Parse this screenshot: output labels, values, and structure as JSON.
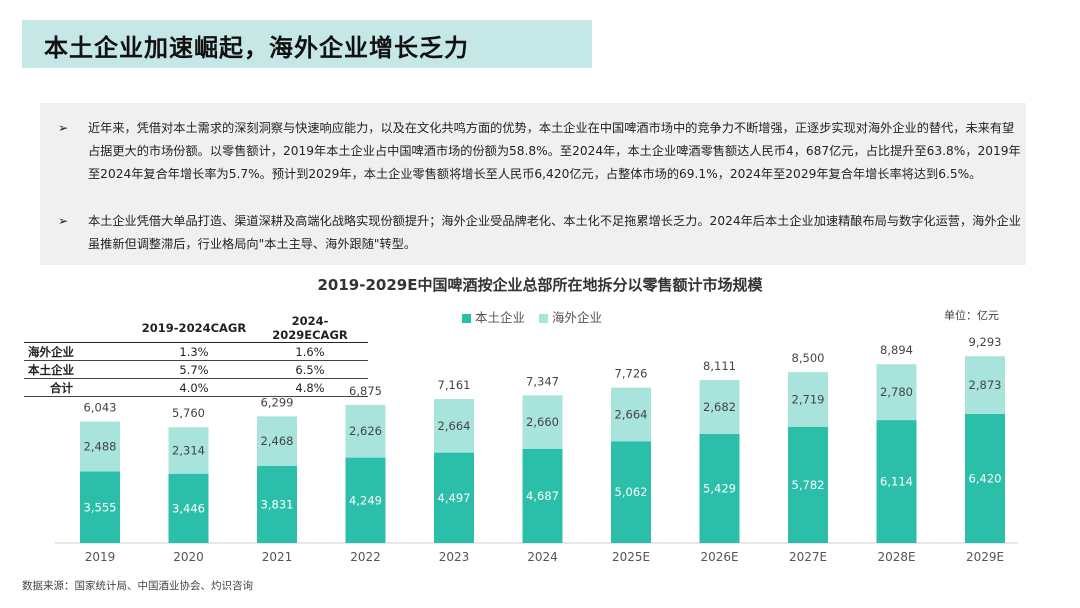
{
  "header": {
    "title": "本土企业加速崛起，海外企业增长乏力"
  },
  "summary": {
    "bullets": [
      "近年来，凭借对本土需求的深刻洞察与快速响应能力，以及在文化共鸣方面的优势，本土企业在中国啤酒市场中的竞争力不断增强，正逐步实现对海外企业的替代，未来有望占据更大的市场份额。以零售额计，2019年本土企业占中国啤酒市场的份额为58.8%。至2024年，本土企业啤酒零售额达人民币4，687亿元，占比提升至63.8%，2019年至2024年复合年增长率为5.7%。预计到2029年，本土企业零售额将增长至人民币6,420亿元，占整体市场的69.1%，2024年至2029年复合年增长率将达到6.5%。",
      "本土企业凭借大单品打造、渠道深耕及高端化战略实现份额提升；海外企业受品牌老化、本土化不足拖累增长乏力。2024年后本土企业加速精酿布局与数字化运营，海外企业虽推新但调整滞后，行业格局向\"本土主导、海外跟随\"转型。"
    ],
    "bullet_marker": "➢"
  },
  "cagr_table": {
    "headers": [
      "",
      "2019-2024CAGR",
      "2024-2029ECAGR"
    ],
    "rows": [
      [
        "海外企业",
        "1.3%",
        "1.6%"
      ],
      [
        "本土企业",
        "5.7%",
        "6.5%"
      ],
      [
        "合计",
        "4.0%",
        "4.8%"
      ]
    ]
  },
  "chart_data": {
    "type": "bar",
    "stacked": true,
    "title": "2019-2029E中国啤酒按企业总部所在地拆分以零售额计市场规模",
    "unit_label": "单位：亿元",
    "categories": [
      "2019",
      "2020",
      "2021",
      "2022",
      "2023",
      "2024",
      "2025E",
      "2026E",
      "2027E",
      "2028E",
      "2029E"
    ],
    "series": [
      {
        "name": "本土企业",
        "color": "#2bbfa9",
        "values": [
          3555,
          3446,
          3831,
          4249,
          4497,
          4687,
          5062,
          5429,
          5782,
          6114,
          6420
        ]
      },
      {
        "name": "海外企业",
        "color": "#a8e4dc",
        "values": [
          2488,
          2314,
          2468,
          2626,
          2664,
          2660,
          2664,
          2682,
          2719,
          2780,
          2873
        ]
      }
    ],
    "totals": [
      "6,043",
      "5,760",
      "6,299",
      "6,875",
      "7,161",
      "7,347",
      "7,726",
      "8,111",
      "8,500",
      "8,894",
      "9,293"
    ],
    "ylim": [
      0,
      9700
    ],
    "legend_position": "top"
  },
  "footer": {
    "source": "数据来源：国家统计局、中国酒业协会、灼识咨询"
  }
}
